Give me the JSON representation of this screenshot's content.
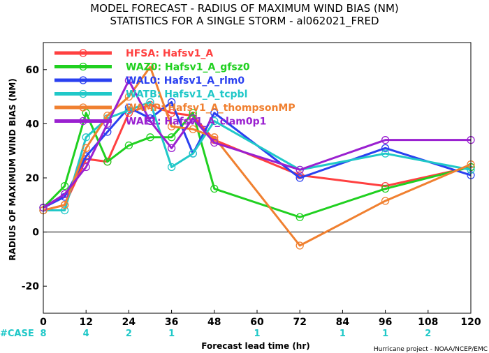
{
  "chart_data": {
    "type": "line",
    "title": "MODEL FORECAST - RADIUS OF MAXIMUM WIND BIAS (NM)",
    "subtitle": "STATISTICS FOR A SINGLE STORM - al062021_FRED",
    "xlabel": "Forecast lead time (hr)",
    "ylabel": "RADIUS OF MAXIMUM WIND BIAS (NM)",
    "xlim": [
      0,
      120
    ],
    "ylim": [
      -30,
      70
    ],
    "x_ticks": [
      0,
      12,
      24,
      36,
      48,
      60,
      72,
      84,
      96,
      108,
      120
    ],
    "y_ticks": [
      -20,
      0,
      20,
      40,
      60
    ],
    "zero_line": true,
    "legend_position": "top-left",
    "series": [
      {
        "name": "HFSA: Hafsv1_A",
        "color": "#ff4040",
        "x": [
          0,
          6,
          12,
          18,
          24,
          30,
          36,
          42,
          48,
          72,
          96,
          120
        ],
        "y": [
          8,
          10,
          27,
          26,
          44,
          47,
          44,
          43,
          34,
          21,
          17,
          24
        ]
      },
      {
        "name": "WAZ0: Hafsv1_A_gfsz0",
        "color": "#20d020",
        "x": [
          0,
          6,
          12,
          18,
          24,
          30,
          36,
          42,
          48,
          72,
          96,
          120
        ],
        "y": [
          9,
          17,
          44,
          26,
          32,
          35,
          35,
          44,
          16,
          5.5,
          16,
          24
        ]
      },
      {
        "name": "WAL0: Hafsv1_A_rlm0",
        "color": "#2a40f0",
        "x": [
          0,
          6,
          12,
          18,
          24,
          30,
          36,
          42,
          48,
          72,
          96,
          120
        ],
        "y": [
          9,
          13,
          28,
          37,
          46,
          42,
          48,
          29,
          44,
          20,
          31,
          21
        ]
      },
      {
        "name": "WATB: Hafsv1_A_tcpbl",
        "color": "#20c8c8",
        "x": [
          0,
          6,
          12,
          18,
          24,
          30,
          36,
          42,
          48,
          72,
          96,
          120
        ],
        "y": [
          8,
          8,
          35,
          42,
          45,
          48,
          24,
          29,
          41,
          23,
          29,
          23
        ]
      },
      {
        "name": "WAMP: Hafsv1_A_thompsonMP",
        "color": "#f08030",
        "x": [
          0,
          6,
          12,
          18,
          24,
          30,
          36,
          42,
          48,
          72,
          96,
          120
        ],
        "y": [
          8,
          10,
          31,
          43,
          50,
          61,
          39,
          38,
          35,
          -5,
          11.5,
          25
        ]
      },
      {
        "name": "WAE1: Hafsv1_A_clam0p1",
        "color": "#9a20d0",
        "x": [
          0,
          6,
          12,
          18,
          24,
          30,
          36,
          42,
          48,
          72,
          96,
          120
        ],
        "y": [
          9,
          14,
          24,
          40,
          56,
          41,
          31,
          42,
          33,
          23,
          34,
          34
        ]
      }
    ],
    "cases": {
      "label": "#CASE",
      "items": [
        {
          "x": 0,
          "n": "8"
        },
        {
          "x": 12,
          "n": "4"
        },
        {
          "x": 24,
          "n": "2"
        },
        {
          "x": 36,
          "n": "1"
        },
        {
          "x": 60,
          "n": "1"
        },
        {
          "x": 84,
          "n": "1"
        },
        {
          "x": 96,
          "n": "1"
        },
        {
          "x": 108,
          "n": "2"
        }
      ]
    },
    "credit": "Hurricane project - NOAA/NCEP/EMC",
    "colors": {
      "case_label": "#20c8c8",
      "case_numbers": "#20c8c8",
      "axis": "#000000",
      "zero_line": "#000000"
    }
  }
}
